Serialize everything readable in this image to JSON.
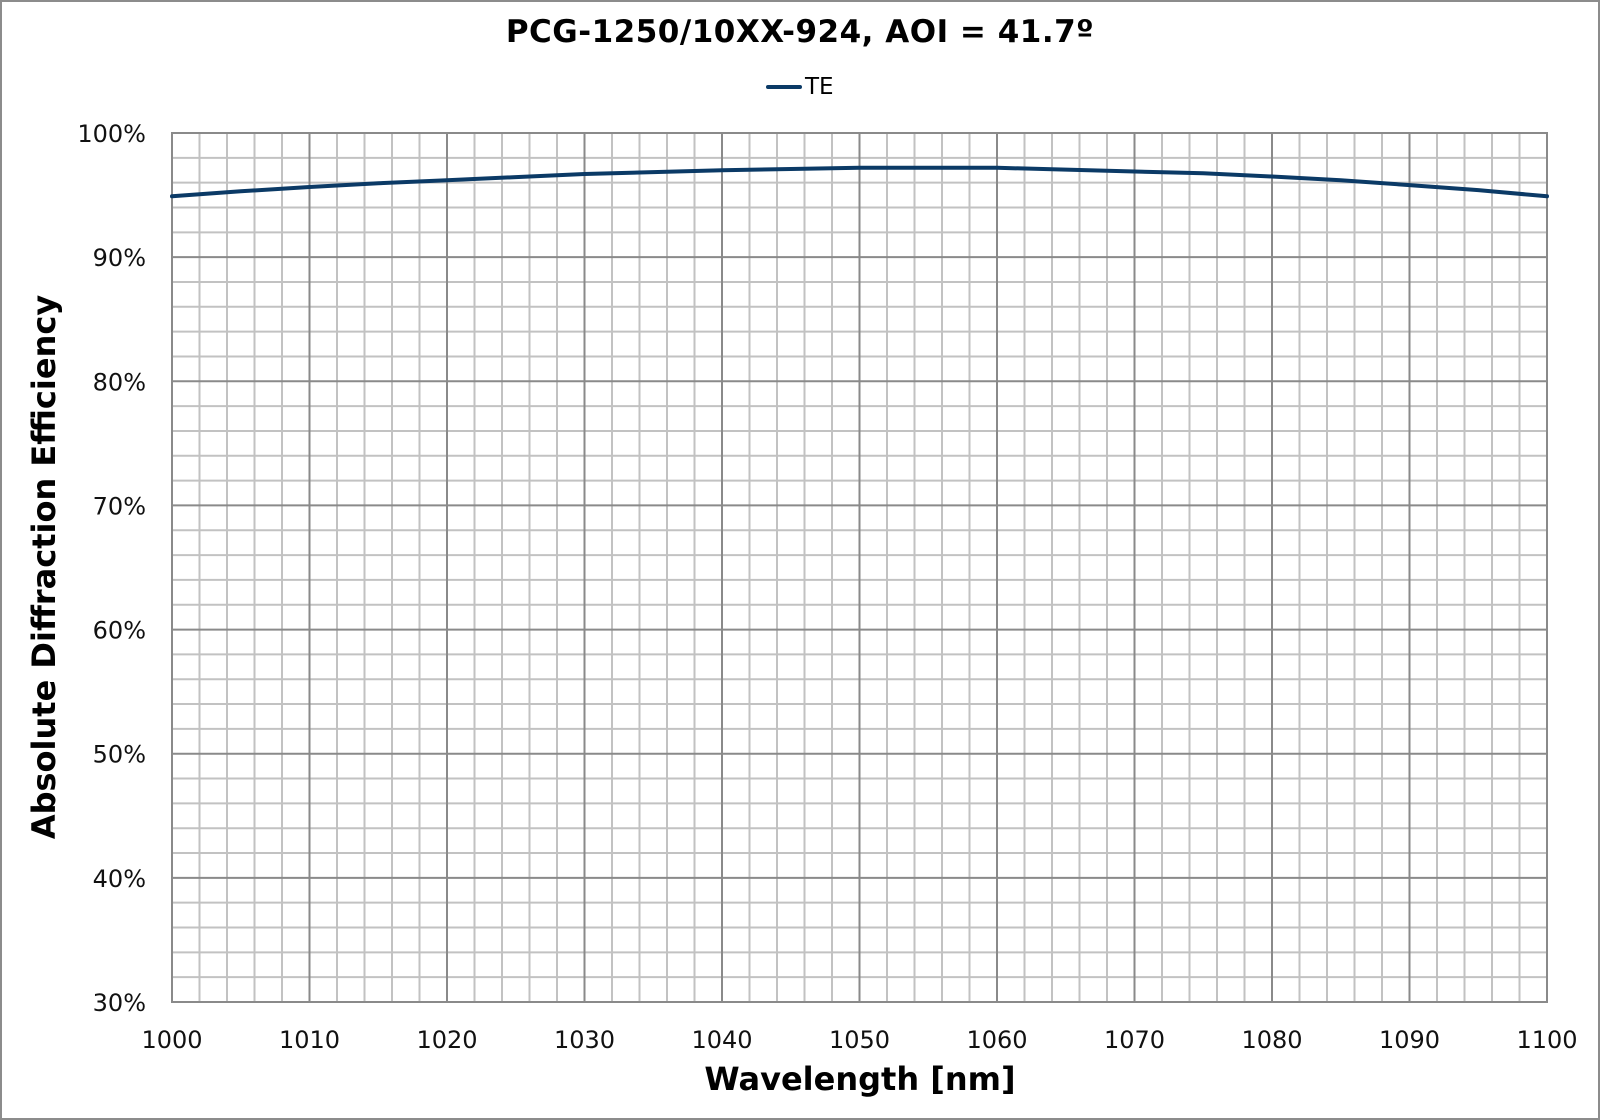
{
  "chart_data": {
    "type": "line",
    "title": "PCG-1250/10XX-924, AOI = 41.7º",
    "xlabel": "Wavelength [nm]",
    "ylabel": "Absolute Diffraction Efficiency",
    "xlim": [
      1000,
      1100
    ],
    "ylim": [
      30,
      100
    ],
    "x_ticks": [
      1000,
      1010,
      1020,
      1030,
      1040,
      1050,
      1060,
      1070,
      1080,
      1090,
      1100
    ],
    "x_tick_labels": [
      "1000",
      "1010",
      "1020",
      "1030",
      "1040",
      "1050",
      "1060",
      "1070",
      "1080",
      "1090",
      "1100"
    ],
    "y_ticks": [
      30,
      40,
      50,
      60,
      70,
      80,
      90,
      100
    ],
    "y_tick_labels": [
      "30%",
      "40%",
      "50%",
      "60%",
      "70%",
      "80%",
      "90%",
      "100%"
    ],
    "grid": {
      "major": true,
      "minor": true,
      "x_minor_step": 2,
      "y_minor_step": 2
    },
    "legend": {
      "position": "top-center",
      "entries": [
        "TE"
      ]
    },
    "series": [
      {
        "name": "TE",
        "color": "#0b3a66",
        "x": [
          1000,
          1005,
          1010,
          1015,
          1020,
          1025,
          1030,
          1035,
          1040,
          1045,
          1050,
          1055,
          1060,
          1065,
          1070,
          1075,
          1080,
          1085,
          1090,
          1095,
          1100
        ],
        "values": [
          94.9,
          95.3,
          95.65,
          95.95,
          96.2,
          96.45,
          96.7,
          96.85,
          97.0,
          97.1,
          97.2,
          97.2,
          97.2,
          97.05,
          96.9,
          96.75,
          96.5,
          96.2,
          95.8,
          95.4,
          94.9
        ]
      }
    ]
  },
  "legend": {
    "label": "TE",
    "color": "#0b3a66"
  }
}
